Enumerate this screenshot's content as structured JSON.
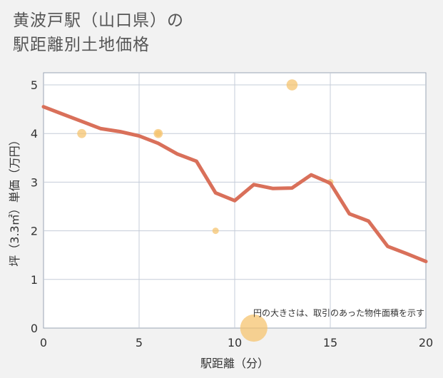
{
  "title": {
    "line1": "黄波戸駅（山口県）の",
    "line2": "駅距離別土地価格"
  },
  "chart_data": {
    "type": "scatter+line",
    "xlabel": "駅距離（分）",
    "ylabel": "坪（3.3㎡）単価（万円）",
    "xlim": [
      0,
      20
    ],
    "ylim": [
      0,
      5.25
    ],
    "x_ticks": [
      0,
      5,
      10,
      15,
      20
    ],
    "y_ticks": [
      0,
      1,
      2,
      3,
      4,
      5
    ],
    "grid": true,
    "note": "円の大きさは、取引のあった物件面積を示す",
    "trend_line": {
      "name": "trend",
      "color": "#d9705a",
      "points": [
        {
          "x": 0,
          "y": 4.55
        },
        {
          "x": 1,
          "y": 4.4
        },
        {
          "x": 2,
          "y": 4.25
        },
        {
          "x": 3,
          "y": 4.1
        },
        {
          "x": 4,
          "y": 4.04
        },
        {
          "x": 5,
          "y": 3.95
        },
        {
          "x": 6,
          "y": 3.8
        },
        {
          "x": 7,
          "y": 3.58
        },
        {
          "x": 8,
          "y": 3.43
        },
        {
          "x": 9,
          "y": 2.78
        },
        {
          "x": 10,
          "y": 2.62
        },
        {
          "x": 11,
          "y": 2.95
        },
        {
          "x": 12,
          "y": 2.87
        },
        {
          "x": 13,
          "y": 2.88
        },
        {
          "x": 14,
          "y": 3.15
        },
        {
          "x": 15,
          "y": 2.98
        },
        {
          "x": 16,
          "y": 2.35
        },
        {
          "x": 17,
          "y": 2.2
        },
        {
          "x": 18,
          "y": 1.68
        },
        {
          "x": 19,
          "y": 1.53
        },
        {
          "x": 20,
          "y": 1.37
        }
      ]
    },
    "bubbles": {
      "color": "#f5c26b",
      "points": [
        {
          "x": 2,
          "y": 4.0,
          "size": 2
        },
        {
          "x": 6,
          "y": 4.0,
          "size": 2
        },
        {
          "x": 6,
          "y": 4.0,
          "size": 1
        },
        {
          "x": 9,
          "y": 2.0,
          "size": 1
        },
        {
          "x": 11,
          "y": 0.0,
          "size": 18
        },
        {
          "x": 13,
          "y": 5.0,
          "size": 3
        },
        {
          "x": 15,
          "y": 3.0,
          "size": 1
        }
      ]
    }
  }
}
